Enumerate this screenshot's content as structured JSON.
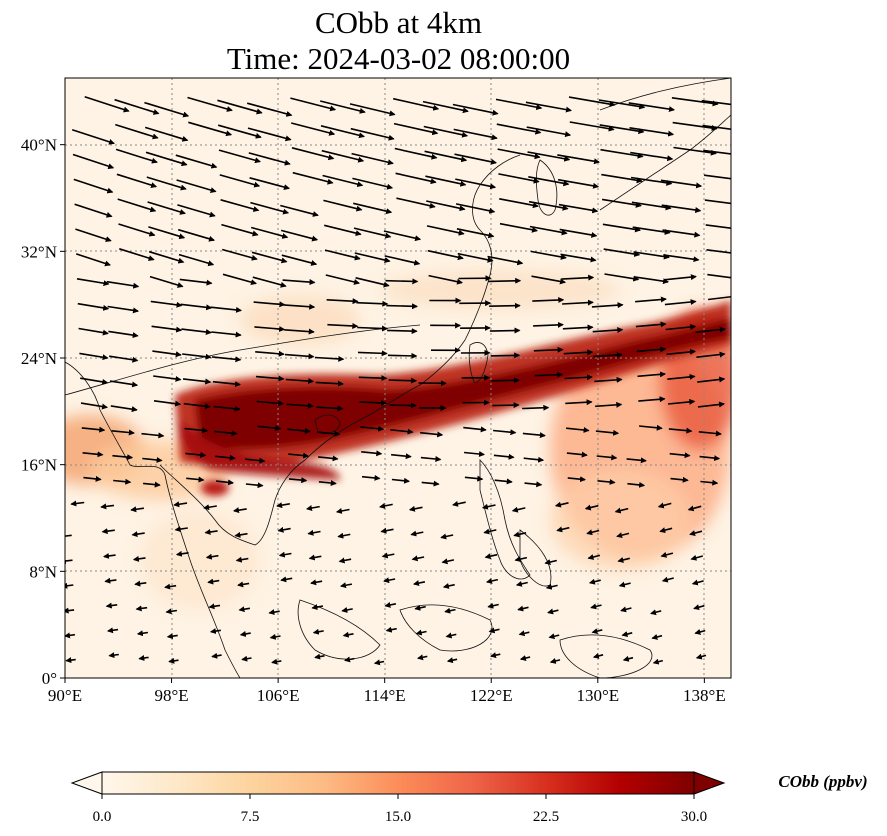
{
  "title": {
    "line1": "CObb at 4km",
    "line2": "Time: 2024-03-02 08:00:00"
  },
  "map": {
    "lon_range": [
      90,
      140
    ],
    "lat_range": [
      0,
      45
    ],
    "x_ticks": [
      "90°E",
      "98°E",
      "106°E",
      "114°E",
      "122°E",
      "130°E",
      "138°E"
    ],
    "x_tick_values": [
      90,
      98,
      106,
      114,
      122,
      130,
      138
    ],
    "y_ticks": [
      "0°",
      "8°N",
      "16°N",
      "24°N",
      "32°N",
      "40°N"
    ],
    "y_tick_values": [
      0,
      8,
      16,
      24,
      32,
      40
    ],
    "gridlines": true,
    "overlay": "wind vectors",
    "colormap": "OrRd"
  },
  "colorbar": {
    "label": "CObb (ppbv)",
    "ticks": [
      "0.0",
      "7.5",
      "15.0",
      "22.5",
      "30.0"
    ],
    "range": [
      0,
      30
    ],
    "extend": "both",
    "colors": [
      "#fff7ec",
      "#fee8c8",
      "#fdd49e",
      "#fdbb84",
      "#fc8d59",
      "#ef6548",
      "#d7301f",
      "#b30000",
      "#7f0000"
    ]
  }
}
